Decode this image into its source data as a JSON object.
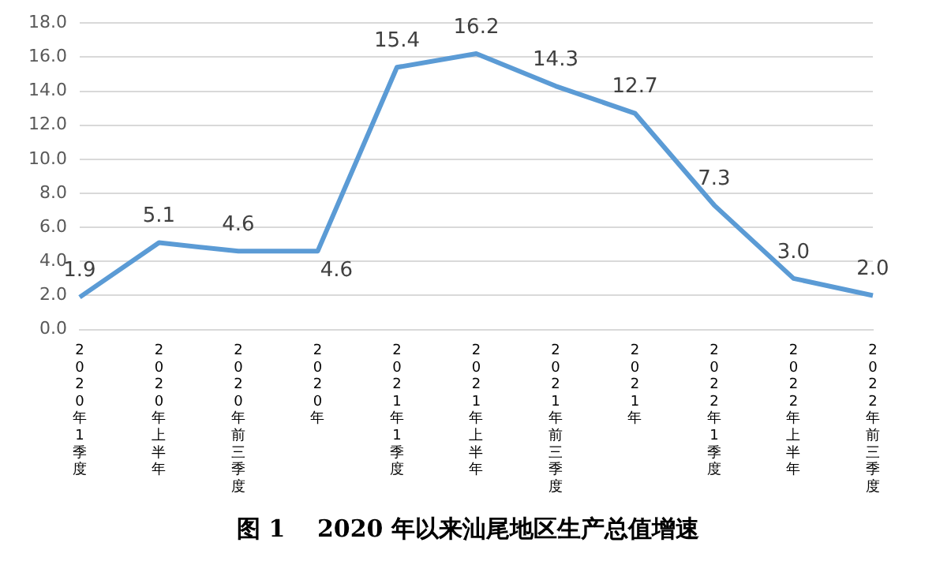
{
  "chart_data": {
    "type": "line",
    "title": "图 1　 2020 年以来汕尾地区生产总值增速",
    "categories": [
      "2020年1季度",
      "2020年上半年",
      "2020年前三季度",
      "2020年",
      "2021年1季度",
      "2021年上半年",
      "2021年前三季度",
      "2021年",
      "2022年1季度",
      "2022年上半年",
      "2022年前三季度"
    ],
    "series": [
      {
        "color": "#5b9bd5",
        "values": [
          1.9,
          5.1,
          4.6,
          4.6,
          15.4,
          16.2,
          14.3,
          12.7,
          7.3,
          3.0,
          2.0
        ],
        "value_labels": [
          "1.9",
          "5.1",
          "4.6",
          "4.6",
          "15.4",
          "16.2",
          "14.3",
          "12.7",
          "7.3",
          "3.0",
          "2.0"
        ]
      }
    ],
    "ylim": [
      0,
      18
    ],
    "yticks": [
      {
        "value": 0,
        "label": "0.0"
      },
      {
        "value": 2,
        "label": "2.0"
      },
      {
        "value": 4,
        "label": "4.0"
      },
      {
        "value": 6,
        "label": "6.0"
      },
      {
        "value": 8,
        "label": "8.0"
      },
      {
        "value": 10,
        "label": "10.0"
      },
      {
        "value": 12,
        "label": "12.0"
      },
      {
        "value": 14,
        "label": "14.0"
      },
      {
        "value": 16,
        "label": "16.0"
      },
      {
        "value": 18,
        "label": "18.0"
      }
    ],
    "grid": "y",
    "legend": false,
    "marker": "none",
    "line_style": "solid"
  }
}
